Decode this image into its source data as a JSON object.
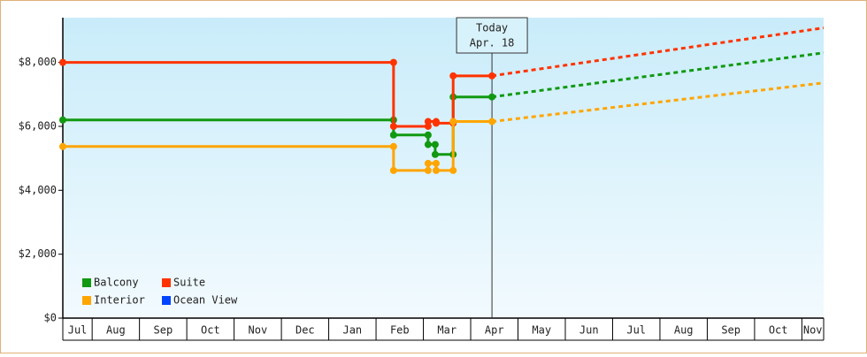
{
  "chart_data": {
    "type": "step-line",
    "x_unit": "month",
    "xlim": [
      0.38,
      16.46
    ],
    "xticks": [
      {
        "value": 0.5,
        "label": "Jul"
      },
      {
        "value": 1.5,
        "label": "Aug"
      },
      {
        "value": 2.5,
        "label": "Sep"
      },
      {
        "value": 3.5,
        "label": "Oct"
      },
      {
        "value": 4.5,
        "label": "Nov"
      },
      {
        "value": 5.5,
        "label": "Dec"
      },
      {
        "value": 6.5,
        "label": "Jan"
      },
      {
        "value": 7.5,
        "label": "Feb"
      },
      {
        "value": 8.5,
        "label": "Mar"
      },
      {
        "value": 9.5,
        "label": "Apr"
      },
      {
        "value": 10.5,
        "label": "May"
      },
      {
        "value": 11.5,
        "label": "Jun"
      },
      {
        "value": 12.5,
        "label": "Jul"
      },
      {
        "value": 13.5,
        "label": "Aug"
      },
      {
        "value": 14.5,
        "label": "Sep"
      },
      {
        "value": 15.5,
        "label": "Oct"
      },
      {
        "value": 16.5,
        "label": "Nov"
      }
    ],
    "ylim": [
      0,
      9400
    ],
    "yticks": [
      {
        "value": 0,
        "label": "$0"
      },
      {
        "value": 2000,
        "label": "$2,000"
      },
      {
        "value": 4000,
        "label": "$4,000"
      },
      {
        "value": 6000,
        "label": "$6,000"
      },
      {
        "value": 8000,
        "label": "$8,000"
      }
    ],
    "today": {
      "x": 9.45,
      "label": [
        "Today",
        "Apr. 18"
      ]
    },
    "legend": "bottom-left",
    "series": [
      {
        "name": "Balcony",
        "color": "#119911",
        "x": [
          0.38,
          7.37,
          7.37,
          8.1,
          8.1,
          8.25,
          8.25,
          8.63,
          8.63,
          9.45
        ],
        "values": [
          6200,
          6200,
          5730,
          5730,
          5430,
          5430,
          5120,
          5120,
          6920,
          6920
        ],
        "forecast": {
          "x": [
            9.45,
            16.46
          ],
          "values": [
            6920,
            8300
          ]
        }
      },
      {
        "name": "Suite",
        "color": "#ff3300",
        "x": [
          0.38,
          7.37,
          7.37,
          8.1,
          8.1,
          8.27,
          8.27,
          8.63,
          8.63,
          9.45
        ],
        "values": [
          8000,
          8000,
          6000,
          6000,
          6150,
          6150,
          6100,
          6100,
          7580,
          7580
        ],
        "forecast": {
          "x": [
            9.45,
            16.46
          ],
          "values": [
            7580,
            9080
          ]
        }
      },
      {
        "name": "Interior",
        "color": "#ffa500",
        "x": [
          0.38,
          7.37,
          7.37,
          8.1,
          8.1,
          8.27,
          8.27,
          8.63,
          8.63,
          9.45
        ],
        "values": [
          5370,
          5370,
          4620,
          4620,
          4840,
          4840,
          4620,
          4620,
          6150,
          6150
        ],
        "forecast": {
          "x": [
            9.45,
            16.46
          ],
          "values": [
            6150,
            7360
          ]
        }
      },
      {
        "name": "Ocean View",
        "color": "#0044ff",
        "x": [],
        "values": []
      }
    ]
  }
}
